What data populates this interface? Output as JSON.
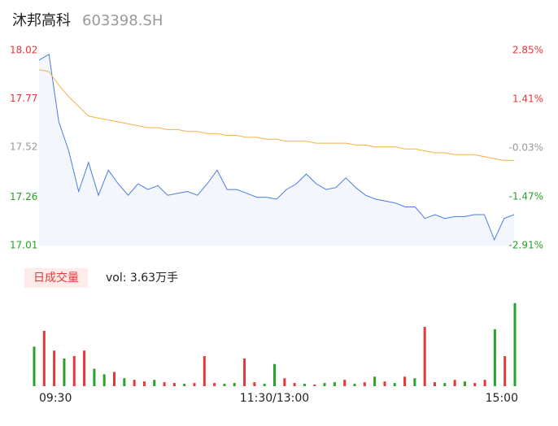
{
  "chart_data": [
    {
      "type": "line",
      "title": "沐邦高科",
      "subtitle": "603398.SH",
      "series": [
        {
          "color": "#4a7de0",
          "values": [
            17.97,
            18.0,
            17.65,
            17.5,
            17.29,
            17.44,
            17.27,
            17.4,
            17.33,
            17.27,
            17.33,
            17.3,
            17.32,
            17.27,
            17.28,
            17.29,
            17.27,
            17.33,
            17.4,
            17.3,
            17.3,
            17.28,
            17.26,
            17.26,
            17.25,
            17.3,
            17.33,
            17.38,
            17.33,
            17.3,
            17.31,
            17.36,
            17.31,
            17.27,
            17.25,
            17.24,
            17.23,
            17.21,
            17.21,
            17.15,
            17.17,
            17.15,
            17.16,
            17.16,
            17.17,
            17.17,
            17.04,
            17.15,
            17.17
          ]
        },
        {
          "color": "#f5b342",
          "values": [
            17.92,
            17.91,
            17.84,
            17.78,
            17.73,
            17.68,
            17.67,
            17.66,
            17.65,
            17.64,
            17.63,
            17.62,
            17.62,
            17.61,
            17.61,
            17.6,
            17.6,
            17.59,
            17.59,
            17.58,
            17.58,
            17.57,
            17.57,
            17.56,
            17.56,
            17.55,
            17.55,
            17.55,
            17.54,
            17.54,
            17.54,
            17.54,
            17.53,
            17.53,
            17.52,
            17.52,
            17.52,
            17.51,
            17.51,
            17.5,
            17.49,
            17.49,
            17.48,
            17.48,
            17.48,
            17.47,
            17.46,
            17.45,
            17.45
          ]
        }
      ],
      "area": true,
      "area_color": "#f3f6fd",
      "ylim": [
        17.01,
        18.02
      ],
      "yticks": [
        18.02,
        17.77,
        17.52,
        17.26,
        17.01
      ],
      "y2lim": [
        -2.91,
        2.85
      ],
      "y2ticks": [
        {
          "value": 2.85,
          "label": "2.85%"
        },
        {
          "value": 1.41,
          "label": "1.41%"
        },
        {
          "value": -0.03,
          "label": "-0.03%"
        },
        {
          "value": -1.47,
          "label": "-1.47%"
        },
        {
          "value": -2.91,
          "label": "-2.91%"
        }
      ],
      "tick_colors": [
        "#e8373a",
        "#e8373a",
        "#999999",
        "#2a9d2a",
        "#2a9d2a"
      ],
      "grid": false
    },
    {
      "type": "bar",
      "title": "日成交量",
      "annotation": "vol: 3.63万手",
      "categories": [
        "09:30",
        null,
        null,
        null,
        null,
        null,
        null,
        null,
        null,
        null,
        null,
        null,
        null,
        null,
        null,
        null,
        null,
        null,
        null,
        null,
        null,
        null,
        null,
        null,
        "11:30/13:00",
        null,
        null,
        null,
        null,
        null,
        null,
        null,
        null,
        null,
        null,
        null,
        null,
        null,
        null,
        null,
        null,
        null,
        null,
        null,
        null,
        null,
        null,
        null,
        "15:00"
      ],
      "values": [
        50,
        70,
        45,
        35,
        38,
        45,
        22,
        15,
        18,
        10,
        8,
        6,
        8,
        5,
        4,
        3,
        4,
        38,
        4,
        3,
        4,
        35,
        5,
        3,
        28,
        10,
        4,
        3,
        2,
        4,
        5,
        8,
        3,
        5,
        12,
        6,
        4,
        12,
        10,
        75,
        5,
        4,
        8,
        6,
        4,
        8,
        72,
        38,
        105
      ],
      "colors": [
        "#2ca02c",
        "#e8373a",
        "#e8373a",
        "#2ca02c",
        "#e8373a",
        "#e8373a",
        "#2ca02c",
        "#2ca02c",
        "#e8373a",
        "#2ca02c",
        "#e8373a",
        "#e8373a",
        "#2ca02c",
        "#e8373a",
        "#e8373a",
        "#2ca02c",
        "#e8373a",
        "#e8373a",
        "#e8373a",
        "#2ca02c",
        "#2ca02c",
        "#e8373a",
        "#e8373a",
        "#2ca02c",
        "#2ca02c",
        "#e8373a",
        "#e8373a",
        "#2ca02c",
        "#e8373a",
        "#2ca02c",
        "#2ca02c",
        "#e8373a",
        "#2ca02c",
        "#e8373a",
        "#2ca02c",
        "#e8373a",
        "#2ca02c",
        "#e8373a",
        "#2ca02c",
        "#e8373a",
        "#e8373a",
        "#2ca02c",
        "#e8373a",
        "#2ca02c",
        "#e8373a",
        "#e8373a",
        "#2ca02c",
        "#e8373a",
        "#2ca02c"
      ],
      "ylim": [
        0,
        110
      ]
    }
  ]
}
